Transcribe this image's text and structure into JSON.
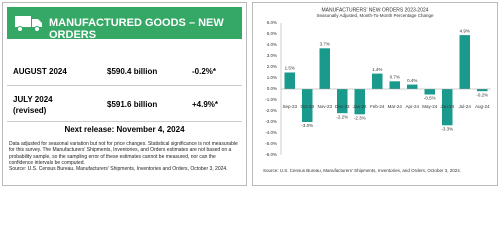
{
  "header": {
    "title": "MANUFACTURED GOODS – NEW ORDERS"
  },
  "rows": [
    {
      "period": "AUGUST 2024",
      "value": "$590.4 billion",
      "change": "-0.2%*"
    },
    {
      "period": "JULY 2024",
      "note": "(revised)",
      "value": "$591.6 billion",
      "change": "+4.9%*"
    }
  ],
  "next_release": "Next release: November 4, 2024",
  "footnote": "Data adjusted for seasonal variation but not for price changes. Statistical significance is not measurable for this survey. The Manufacturers' Shipments, Inventories, and Orders estimates are not based on a probability sample, so the sampling error of these estimates cannot be measured, nor can the confidence intervals be computed.",
  "footnote_source": "Source: U.S. Census Bureau, Manufacturers' Shipments, Inventories and Orders, October 3, 2024.",
  "chart_data": {
    "type": "bar",
    "title": "MANUFACTURERS' NEW ORDERS 2023-2024",
    "subtitle": "Seasonally Adjusted,  Month-To-Month Percentage Change",
    "source": "Source: U.S. Census Bureau, Manufacturers' Shipments, Inventories, and Orders, October 3, 2024.",
    "categories": [
      "Sep-23",
      "Oct-23",
      "Nov-23",
      "Dec-23",
      "Jan-24",
      "Feb-24",
      "Mar-24",
      "Apr-24",
      "May-24",
      "Jun-24",
      "Jul-24",
      "Aug-24"
    ],
    "values": [
      1.5,
      -3.0,
      3.7,
      -2.2,
      -2.3,
      1.4,
      0.7,
      0.4,
      -0.5,
      -3.3,
      4.9,
      -0.2
    ],
    "value_labels": [
      "1.5%",
      "-3.0%",
      "3.7%",
      "-2.2%",
      "-2.3%",
      "1.4%",
      "0.7%",
      "0.4%",
      "-0.5%",
      "-3.3%",
      "4.9%",
      "-0.2%"
    ],
    "color": "#1a9a8c",
    "ylim": [
      -6,
      6
    ],
    "yticks": [
      {
        "value": -6,
        "label": "-6.0%"
      },
      {
        "value": -5,
        "label": "-5.0%"
      },
      {
        "value": -4,
        "label": "-4.0%"
      },
      {
        "value": -3,
        "label": "-3.0%"
      },
      {
        "value": -2,
        "label": "-2.0%"
      },
      {
        "value": -1,
        "label": "-1.0%"
      },
      {
        "value": 0,
        "label": "0.0%"
      },
      {
        "value": 1,
        "label": "1.0%"
      },
      {
        "value": 2,
        "label": "2.0%"
      },
      {
        "value": 3,
        "label": "3.0%"
      },
      {
        "value": 4,
        "label": "4.0%"
      },
      {
        "value": 5,
        "label": "5.0%"
      },
      {
        "value": 6,
        "label": "6.0%"
      }
    ],
    "grid": false
  }
}
